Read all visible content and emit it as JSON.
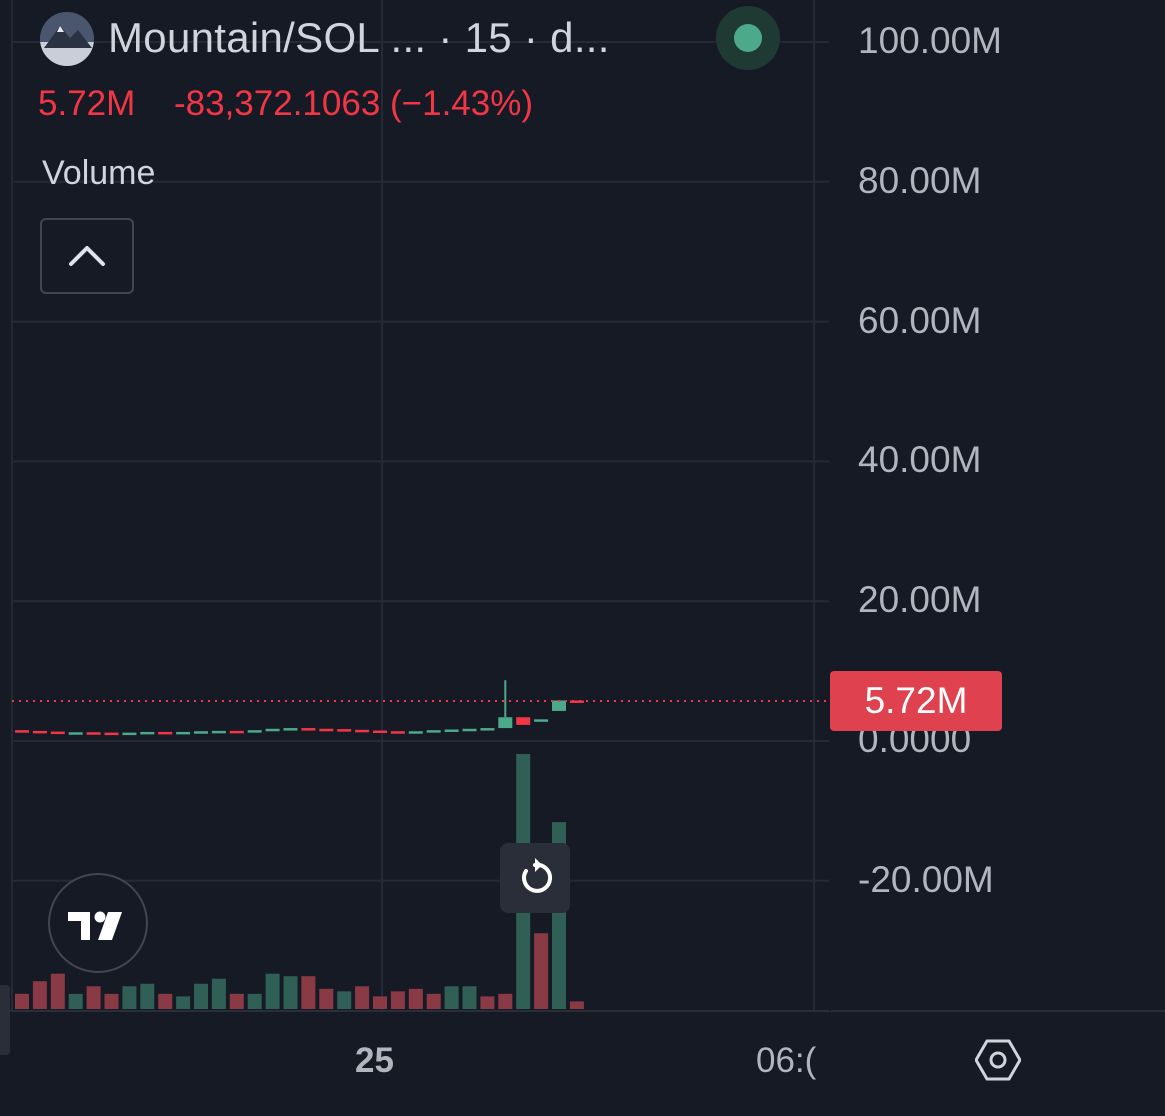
{
  "header": {
    "symbol_title": "Mountain/SOL ...  · 15 · d...",
    "last_value": "5.72M",
    "change": "-83,372.1063 (−1.43%)",
    "indicator_name": "Volume",
    "status_color": "#4ca98a"
  },
  "price_badge": {
    "text": "5.72M",
    "color": "#e0414f"
  },
  "icons": {
    "avatar": "mountain-avatar-icon",
    "collapse": "chevron-up-icon",
    "logo": "tradingview-logo-icon",
    "reset": "reset-rotate-icon",
    "settings": "hexagon-settings-icon"
  },
  "colors": {
    "up": "#4ca98a",
    "down": "#f23645",
    "volume_up": "#2f5f55",
    "volume_down": "#8a3a44",
    "background": "#161a25"
  },
  "chart_data": {
    "type": "candlestick",
    "y_axis": {
      "ticks": [
        "100.00M",
        "80.00M",
        "60.00M",
        "40.00M",
        "20.00M",
        "0.0000",
        "-20.00M"
      ],
      "tick_values": [
        100,
        80,
        60,
        40,
        20,
        0,
        -20
      ],
      "unit": "M"
    },
    "x_axis": {
      "ticks": [
        "25",
        "06:("
      ]
    },
    "last_value": 5.72,
    "candles": [
      {
        "o": 1.55,
        "c": 1.45,
        "d": "down"
      },
      {
        "o": 1.45,
        "c": 1.35,
        "d": "down"
      },
      {
        "o": 1.35,
        "c": 1.2,
        "d": "down"
      },
      {
        "o": 1.2,
        "c": 1.25,
        "d": "up"
      },
      {
        "o": 1.25,
        "c": 1.2,
        "d": "down"
      },
      {
        "o": 1.2,
        "c": 1.15,
        "d": "down"
      },
      {
        "o": 1.15,
        "c": 1.2,
        "d": "up"
      },
      {
        "o": 1.2,
        "c": 1.3,
        "d": "up"
      },
      {
        "o": 1.3,
        "c": 1.25,
        "d": "down"
      },
      {
        "o": 1.25,
        "c": 1.3,
        "d": "up"
      },
      {
        "o": 1.3,
        "c": 1.4,
        "d": "up"
      },
      {
        "o": 1.4,
        "c": 1.45,
        "d": "up"
      },
      {
        "o": 1.45,
        "c": 1.4,
        "d": "down"
      },
      {
        "o": 1.4,
        "c": 1.55,
        "d": "up"
      },
      {
        "o": 1.55,
        "c": 1.75,
        "d": "up"
      },
      {
        "o": 1.75,
        "c": 1.85,
        "d": "up"
      },
      {
        "o": 1.85,
        "c": 1.75,
        "d": "down"
      },
      {
        "o": 1.75,
        "c": 1.7,
        "d": "down"
      },
      {
        "o": 1.7,
        "c": 1.6,
        "d": "down"
      },
      {
        "o": 1.6,
        "c": 1.5,
        "d": "down"
      },
      {
        "o": 1.5,
        "c": 1.4,
        "d": "down"
      },
      {
        "o": 1.4,
        "c": 1.3,
        "d": "down"
      },
      {
        "o": 1.3,
        "c": 1.4,
        "d": "up"
      },
      {
        "o": 1.4,
        "c": 1.55,
        "d": "up"
      },
      {
        "o": 1.55,
        "c": 1.65,
        "d": "up"
      },
      {
        "o": 1.65,
        "c": 1.75,
        "d": "up"
      },
      {
        "o": 1.75,
        "c": 1.85,
        "d": "up"
      },
      {
        "o": 1.85,
        "c": 3.4,
        "d": "up",
        "h": 8.7
      },
      {
        "o": 3.4,
        "c": 2.3,
        "d": "down"
      },
      {
        "o": 2.9,
        "c": 3.1,
        "d": "up"
      },
      {
        "o": 4.3,
        "c": 5.8,
        "d": "up"
      },
      {
        "o": 5.8,
        "c": 5.72,
        "d": "down"
      }
    ],
    "volume": [
      {
        "v": 0.3,
        "d": "down"
      },
      {
        "v": 0.55,
        "d": "down"
      },
      {
        "v": 0.7,
        "d": "down"
      },
      {
        "v": 0.3,
        "d": "up"
      },
      {
        "v": 0.45,
        "d": "down"
      },
      {
        "v": 0.3,
        "d": "down"
      },
      {
        "v": 0.45,
        "d": "up"
      },
      {
        "v": 0.5,
        "d": "up"
      },
      {
        "v": 0.3,
        "d": "down"
      },
      {
        "v": 0.25,
        "d": "up"
      },
      {
        "v": 0.5,
        "d": "up"
      },
      {
        "v": 0.6,
        "d": "up"
      },
      {
        "v": 0.3,
        "d": "down"
      },
      {
        "v": 0.3,
        "d": "up"
      },
      {
        "v": 0.7,
        "d": "up"
      },
      {
        "v": 0.65,
        "d": "up"
      },
      {
        "v": 0.65,
        "d": "down"
      },
      {
        "v": 0.4,
        "d": "down"
      },
      {
        "v": 0.35,
        "d": "up"
      },
      {
        "v": 0.45,
        "d": "down"
      },
      {
        "v": 0.25,
        "d": "down"
      },
      {
        "v": 0.35,
        "d": "down"
      },
      {
        "v": 0.4,
        "d": "down"
      },
      {
        "v": 0.3,
        "d": "down"
      },
      {
        "v": 0.45,
        "d": "up"
      },
      {
        "v": 0.45,
        "d": "up"
      },
      {
        "v": 0.25,
        "d": "down"
      },
      {
        "v": 0.3,
        "d": "down"
      },
      {
        "v": 5.05,
        "d": "up"
      },
      {
        "v": 1.5,
        "d": "down"
      },
      {
        "v": 3.7,
        "d": "up"
      },
      {
        "v": 0.15,
        "d": "down"
      }
    ]
  }
}
